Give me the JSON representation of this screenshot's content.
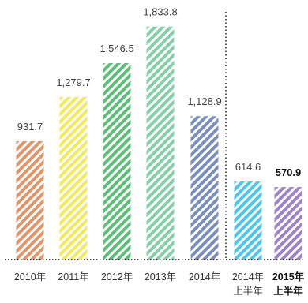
{
  "chart_data": {
    "type": "bar",
    "categories": [
      {
        "line1": "2010年",
        "line2": ""
      },
      {
        "line1": "2011年",
        "line2": ""
      },
      {
        "line1": "2012年",
        "line2": ""
      },
      {
        "line1": "2013年",
        "line2": ""
      },
      {
        "line1": "2014年",
        "line2": ""
      },
      {
        "line1": "2014年",
        "line2": "上半年"
      },
      {
        "line1": "2015年",
        "line2": "上半年"
      }
    ],
    "values": [
      931.7,
      1279.7,
      1546.5,
      1833.8,
      1128.9,
      614.6,
      570.9
    ],
    "value_labels": [
      "931.7",
      "1,279.7",
      "1,546.5",
      "1,833.8",
      "1,128.9",
      "614.6",
      "570.9"
    ],
    "highlight_index": 6,
    "bar_colors": [
      "#e0956a",
      "#f2ea5e",
      "#5fbe7a",
      "#86cfa8",
      "#7b8fbe",
      "#4cc6ea",
      "#9f83c9"
    ],
    "divider": "dotted vertical line between 2014年 and 2014年上半年",
    "ylim": [
      0,
      1950
    ],
    "title": "",
    "xlabel": "",
    "ylabel": "",
    "grid": false,
    "legend": "none"
  }
}
